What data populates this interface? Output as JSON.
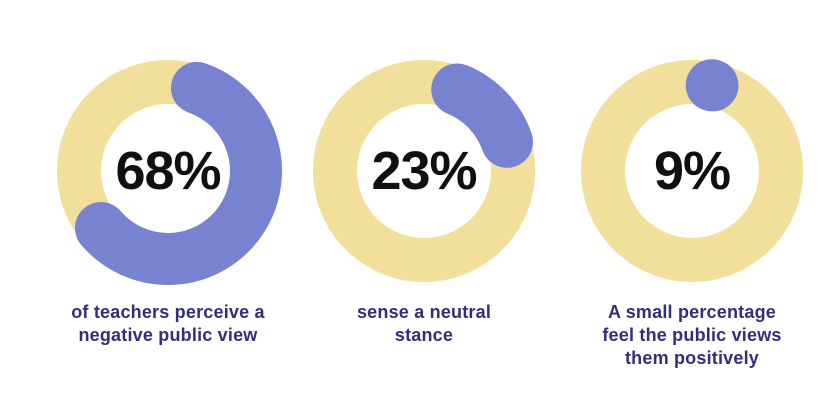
{
  "page": {
    "background": "#ffffff"
  },
  "colors": {
    "track": "#F2DF9B",
    "fill": "#7783D1",
    "caption_text": "#332D7D",
    "value_text": "#101010"
  },
  "chart_data": [
    {
      "type": "pie",
      "subtype": "donut-progress",
      "value": 68,
      "unit": "%",
      "value_label": "68%",
      "caption": "of teachers perceive a negative public view",
      "caption_lines": [
        "of teachers perceive a",
        "negative public view"
      ],
      "start_deg": 2,
      "track_color": "#F2DF9B",
      "fill_color": "#7783D1"
    },
    {
      "type": "pie",
      "subtype": "donut-progress",
      "value": 23,
      "unit": "%",
      "value_label": "23%",
      "caption": "sense a neutral stance",
      "caption_lines": [
        "sense a neutral",
        "stance"
      ],
      "start_deg": 5,
      "track_color": "#F2DF9B",
      "fill_color": "#7783D1"
    },
    {
      "type": "pie",
      "subtype": "donut-progress",
      "value": 9,
      "unit": "%",
      "value_label": "9%",
      "caption": "A small percentage feel the public views them positively",
      "caption_lines": [
        "A small percentage",
        "feel the public views",
        "them positively"
      ],
      "start_deg": -3,
      "track_color": "#F2DF9B",
      "fill_color": "#7783D1"
    }
  ]
}
